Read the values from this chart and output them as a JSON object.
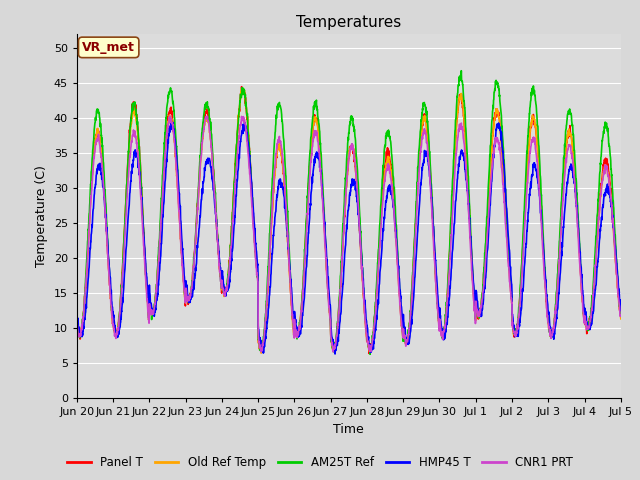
{
  "title": "Temperatures",
  "xlabel": "Time",
  "ylabel": "Temperature (C)",
  "ylim": [
    0,
    52
  ],
  "yticks": [
    0,
    5,
    10,
    15,
    20,
    25,
    30,
    35,
    40,
    45,
    50
  ],
  "background_color": "#d8d8d8",
  "plot_bg_color": "#dcdcdc",
  "annotation_text": "VR_met",
  "annotation_box_facecolor": "#ffffcc",
  "annotation_box_edgecolor": "#8b4513",
  "annotation_text_color": "#8b0000",
  "lines": [
    {
      "label": "Panel T",
      "color": "#ff0000",
      "lw": 1.2
    },
    {
      "label": "Old Ref Temp",
      "color": "#ffa500",
      "lw": 1.2
    },
    {
      "label": "AM25T Ref",
      "color": "#00cc00",
      "lw": 1.2
    },
    {
      "label": "HMP45 T",
      "color": "#0000ff",
      "lw": 1.2
    },
    {
      "label": "CNR1 PRT",
      "color": "#cc44cc",
      "lw": 1.2
    }
  ],
  "n_days": 15,
  "xtick_labels": [
    "Jun 20",
    "Jun 21",
    "Jun 22",
    "Jun 23",
    "Jun 24",
    "Jun 25",
    "Jun 26",
    "Jun 27",
    "Jun 28",
    "Jun 29",
    "Jun 30",
    "Jul 1",
    "Jul 2",
    "Jul 3",
    "Jul 4",
    "Jul 5"
  ],
  "daily_min_temps": [
    9,
    9,
    12,
    14,
    15,
    7,
    9,
    7,
    7,
    8,
    9,
    12,
    9,
    9,
    10
  ],
  "daily_max_temps_panel": [
    38,
    42,
    41,
    41,
    44,
    36,
    40,
    36,
    35,
    40,
    43,
    41,
    40,
    38,
    34
  ],
  "daily_max_temps_ref": [
    38,
    41,
    40,
    40,
    44,
    36,
    40,
    36,
    34,
    40,
    43,
    41,
    40,
    38,
    33
  ],
  "daily_max_temps_am25": [
    41,
    42,
    44,
    42,
    44,
    42,
    42,
    40,
    38,
    42,
    46,
    45,
    44,
    41,
    39
  ],
  "daily_max_temps_hmp": [
    33,
    35,
    39,
    34,
    39,
    31,
    35,
    31,
    30,
    35,
    35,
    39,
    33,
    33,
    30
  ],
  "daily_max_temps_cnr": [
    37,
    38,
    40,
    40,
    40,
    37,
    38,
    36,
    33,
    38,
    39,
    37,
    37,
    36,
    33
  ]
}
